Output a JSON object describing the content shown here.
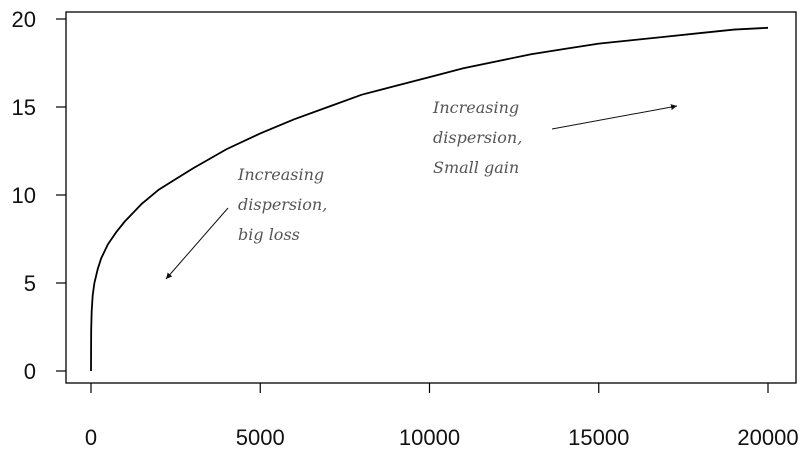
{
  "chart_data": {
    "type": "line",
    "title": "",
    "xlabel": "",
    "ylabel": "",
    "xlim": [
      0,
      20000
    ],
    "ylim": [
      0,
      20
    ],
    "x_ticks": [
      0,
      5000,
      10000,
      15000,
      20000
    ],
    "y_ticks": [
      0,
      5,
      10,
      15,
      20
    ],
    "x_tick_labels": [
      "0",
      "5000",
      "10000",
      "15000",
      "20000"
    ],
    "y_tick_labels": [
      "0",
      "5",
      "10",
      "15",
      "20"
    ],
    "grid": false,
    "series": [
      {
        "x": [
          0,
          5,
          20,
          50,
          100,
          200,
          300,
          500,
          750,
          1000,
          1500,
          2000,
          2500,
          3000,
          4000,
          5000,
          6000,
          7000,
          8000,
          9000,
          10000,
          11000,
          12000,
          13000,
          14000,
          15000,
          16000,
          17000,
          18000,
          19000,
          20000
        ],
        "values": [
          0,
          2.3,
          3.4,
          4.3,
          5.0,
          5.8,
          6.4,
          7.2,
          7.9,
          8.5,
          9.5,
          10.3,
          10.9,
          11.5,
          12.6,
          13.5,
          14.3,
          15.0,
          15.7,
          16.2,
          16.7,
          17.2,
          17.6,
          18.0,
          18.3,
          18.6,
          18.8,
          19.0,
          19.2,
          19.4,
          19.5
        ],
        "color": "#000000"
      }
    ],
    "annotations": [
      {
        "lines": [
          "Increasing",
          "dispersion,",
          "big loss"
        ],
        "arrow": "points toward the steep lower-left part of the curve"
      },
      {
        "lines": [
          "Increasing",
          "dispersion,",
          "Small gain"
        ],
        "arrow": "points toward the flat upper-right part of the curve"
      }
    ]
  }
}
